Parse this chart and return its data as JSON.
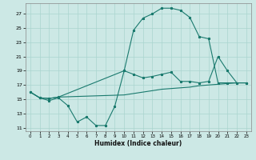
{
  "xlabel": "Humidex (Indice chaleur)",
  "background_color": "#cce8e5",
  "grid_color": "#aad4cf",
  "line_color": "#1a7a6e",
  "xlim": [
    -0.5,
    23.5
  ],
  "ylim": [
    10.5,
    28.5
  ],
  "xticks": [
    0,
    1,
    2,
    3,
    4,
    5,
    6,
    7,
    8,
    9,
    10,
    11,
    12,
    13,
    14,
    15,
    16,
    17,
    18,
    19,
    20,
    21,
    22,
    23
  ],
  "yticks": [
    11,
    13,
    15,
    17,
    19,
    21,
    23,
    25,
    27
  ],
  "curve1_x": [
    0,
    1,
    2,
    3,
    4,
    5,
    6,
    7,
    8,
    9,
    10,
    11,
    12,
    13,
    14,
    15,
    16,
    17,
    18,
    19,
    20,
    21,
    22,
    23
  ],
  "curve1_y": [
    16,
    15.2,
    14.8,
    15.2,
    14.1,
    11.8,
    12.5,
    11.3,
    11.3,
    14.0,
    19.0,
    24.7,
    26.4,
    27.0,
    27.8,
    27.8,
    27.5,
    26.5,
    23.8,
    23.5,
    17.3,
    17.3,
    17.3,
    17.3
  ],
  "curve2_x": [
    0,
    1,
    2,
    3,
    10,
    11,
    12,
    13,
    14,
    15,
    16,
    17,
    18,
    19,
    20,
    21,
    22,
    23
  ],
  "curve2_y": [
    16,
    15.2,
    15.1,
    15.3,
    19.0,
    18.5,
    18.0,
    18.2,
    18.5,
    18.8,
    17.5,
    17.5,
    17.3,
    17.5,
    21.0,
    19.0,
    17.3,
    17.3
  ],
  "curve3_x": [
    0,
    1,
    2,
    3,
    10,
    11,
    12,
    13,
    14,
    15,
    16,
    17,
    18,
    19,
    20,
    21,
    22,
    23
  ],
  "curve3_y": [
    16,
    15.2,
    15.1,
    15.3,
    15.6,
    15.8,
    16.0,
    16.2,
    16.4,
    16.5,
    16.6,
    16.7,
    16.9,
    17.0,
    17.1,
    17.2,
    17.3,
    17.3
  ]
}
